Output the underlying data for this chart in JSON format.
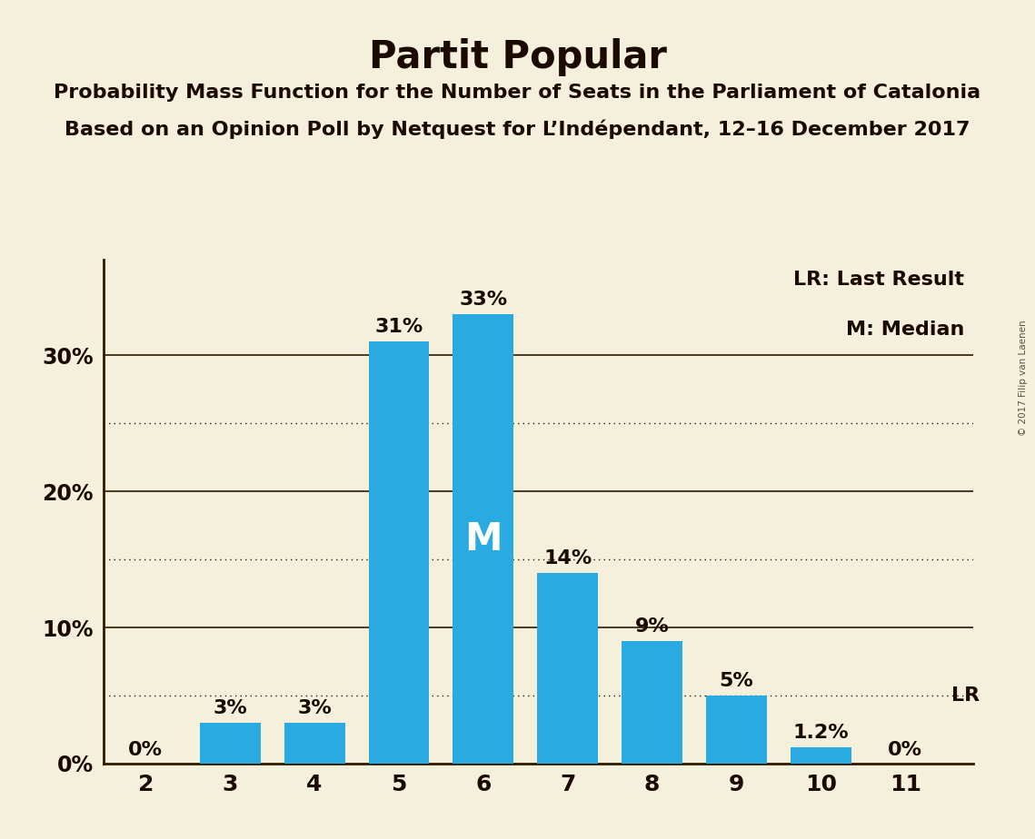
{
  "title": "Partit Popular",
  "subtitle1": "Probability Mass Function for the Number of Seats in the Parliament of Catalonia",
  "subtitle2": "Based on an Opinion Poll by Netquest for L’Indépendant, 12–16 December 2017",
  "copyright": "© 2017 Filip van Laenen",
  "categories": [
    2,
    3,
    4,
    5,
    6,
    7,
    8,
    9,
    10,
    11
  ],
  "values": [
    0,
    3,
    3,
    31,
    33,
    14,
    9,
    5,
    1.2,
    0
  ],
  "labels": [
    "0%",
    "3%",
    "3%",
    "31%",
    "33%",
    "14%",
    "9%",
    "5%",
    "1.2%",
    "0%"
  ],
  "bar_color": "#29ABE2",
  "background_color": "#F5F0DC",
  "text_color": "#1a0a00",
  "median_bar": 6,
  "median_label": "M",
  "lr_value": 5,
  "lr_label": "LR",
  "ymax": 37,
  "legend_lr": "LR: Last Result",
  "legend_m": "M: Median",
  "title_fontsize": 30,
  "subtitle_fontsize": 16,
  "label_fontsize": 16,
  "tick_fontsize": 17,
  "bar_width": 0.72,
  "solid_yticks": [
    0,
    10,
    20,
    30
  ],
  "dotted_yticks": [
    5,
    15,
    25
  ],
  "solid_ytick_labels": [
    "0%",
    "10%",
    "20%",
    "30%"
  ],
  "spine_color": "#2d1a00"
}
